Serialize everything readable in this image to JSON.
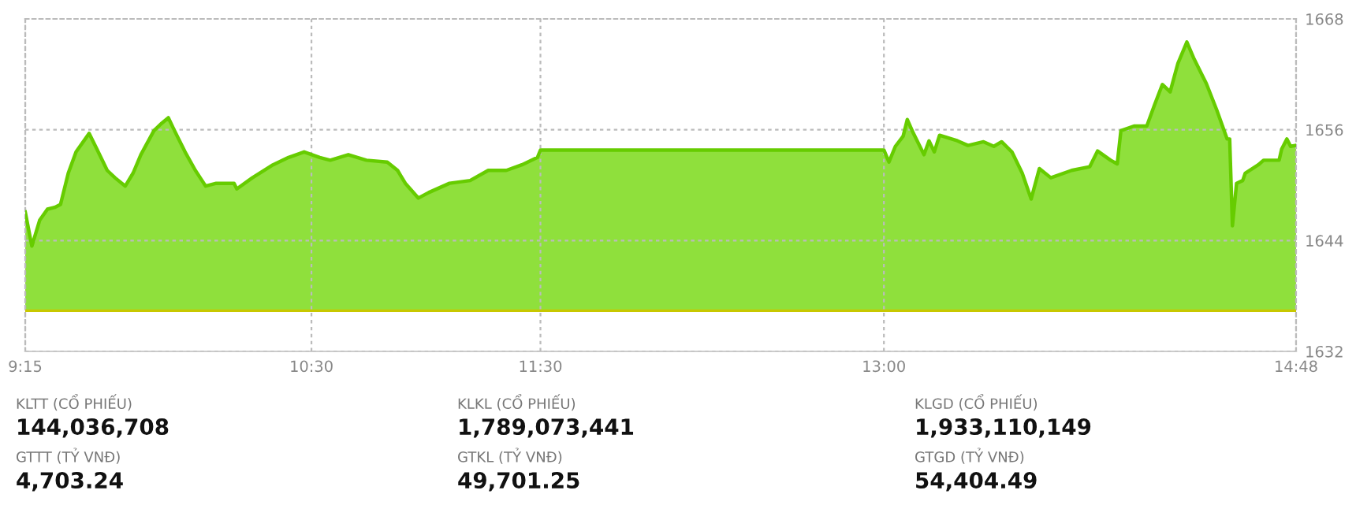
{
  "chart_data": {
    "type": "area",
    "x": [
      9.25,
      9.279,
      9.313,
      9.347,
      9.379,
      9.404,
      9.438,
      9.472,
      9.529,
      9.563,
      9.608,
      9.642,
      9.687,
      9.721,
      9.755,
      9.812,
      9.846,
      9.875,
      9.902,
      9.948,
      9.993,
      10.038,
      10.084,
      10.162,
      10.174,
      10.242,
      10.332,
      10.4,
      10.468,
      10.536,
      10.582,
      10.661,
      10.74,
      10.831,
      10.876,
      10.91,
      10.967,
      11.012,
      11.103,
      11.193,
      11.272,
      11.351,
      11.419,
      11.487,
      11.5,
      13.0,
      13.022,
      13.05,
      13.084,
      13.102,
      13.129,
      13.175,
      13.197,
      13.22,
      13.243,
      13.321,
      13.367,
      13.435,
      13.48,
      13.514,
      13.559,
      13.604,
      13.643,
      13.679,
      13.729,
      13.82,
      13.899,
      13.933,
      13.99,
      14.019,
      14.035,
      14.092,
      14.148,
      14.182,
      14.216,
      14.25,
      14.284,
      14.323,
      14.352,
      14.408,
      14.454,
      14.499,
      14.51,
      14.522,
      14.54,
      14.567,
      14.578,
      14.635,
      14.658,
      14.726,
      14.737,
      14.76,
      14.776,
      14.8
    ],
    "series": [
      {
        "color": "#66cc00",
        "values": [
          1647.1,
          1643.4,
          1646.2,
          1647.4,
          1647.6,
          1647.9,
          1651.3,
          1653.6,
          1655.6,
          1653.9,
          1651.6,
          1650.8,
          1649.9,
          1651.3,
          1653.3,
          1655.9,
          1656.7,
          1657.3,
          1655.9,
          1653.6,
          1651.6,
          1649.9,
          1650.2,
          1650.2,
          1649.6,
          1650.8,
          1652.2,
          1653.0,
          1653.6,
          1653.0,
          1652.7,
          1653.3,
          1652.7,
          1652.5,
          1651.6,
          1650.2,
          1648.6,
          1649.2,
          1650.2,
          1650.5,
          1651.6,
          1651.6,
          1652.2,
          1653.0,
          1653.8,
          1653.8,
          1652.5,
          1654.2,
          1655.3,
          1657.1,
          1655.6,
          1653.3,
          1654.8,
          1653.6,
          1655.4,
          1654.8,
          1654.3,
          1654.7,
          1654.2,
          1654.7,
          1653.6,
          1651.3,
          1648.5,
          1651.8,
          1650.8,
          1651.6,
          1652.0,
          1653.7,
          1652.7,
          1652.3,
          1655.9,
          1656.4,
          1656.4,
          1658.7,
          1660.9,
          1660.1,
          1663.2,
          1665.5,
          1663.8,
          1661.0,
          1658.1,
          1655.0,
          1655.0,
          1645.6,
          1650.2,
          1650.5,
          1651.3,
          1652.2,
          1652.7,
          1652.7,
          1653.9,
          1655.0,
          1654.2,
          1654.3
        ]
      }
    ],
    "xlim": [
      9.25,
      14.8
    ],
    "xticks": [
      {
        "value": 9.25,
        "label": "9:15"
      },
      {
        "value": 10.5,
        "label": "10:30"
      },
      {
        "value": 11.5,
        "label": "11:30"
      },
      {
        "value": 13.0,
        "label": "13:00"
      },
      {
        "value": 14.8,
        "label": "14:48"
      }
    ],
    "ylim": [
      1632,
      1668
    ],
    "yticks": [
      1632,
      1644,
      1656,
      1668
    ],
    "grid": true,
    "ref_lines": [
      {
        "axis": "y",
        "value": 1636.4,
        "color": "#c8c800"
      }
    ],
    "annotations": [
      "KLTT (CỔ PHIẾU)",
      "144,036,708",
      "KLKL (CỔ PHIẾU)",
      "1,789,073,441",
      "KLGD (CỔ PHIẾU)",
      "1,933,110,149",
      "GTTT (TỶ VNĐ)",
      "4,703.24",
      "GTKL (TỶ VNĐ)",
      "49,701.25",
      "GTGD (TỶ VNĐ)",
      "54,404.49"
    ]
  }
}
